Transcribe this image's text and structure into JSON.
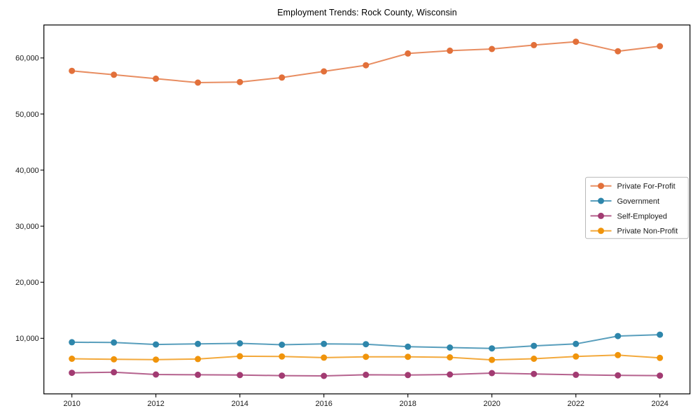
{
  "chart_data": {
    "type": "line",
    "title": "Employment Trends: Rock County, Wisconsin",
    "xlabel": "",
    "ylabel": "",
    "grid": false,
    "background": "#ffffff",
    "axis_color": "#000000",
    "x": [
      2010,
      2011,
      2012,
      2013,
      2014,
      2015,
      2016,
      2017,
      2018,
      2019,
      2020,
      2021,
      2022,
      2023,
      2024
    ],
    "xtick_values": [
      2010,
      2012,
      2014,
      2016,
      2018,
      2020,
      2022,
      2024
    ],
    "xtick_labels": [
      "2010",
      "2012",
      "2014",
      "2016",
      "2018",
      "2020",
      "2022",
      "2024"
    ],
    "ytick_values": [
      10000,
      20000,
      30000,
      40000,
      50000,
      60000
    ],
    "ytick_labels": [
      "10,000",
      "20,000",
      "30,000",
      "40,000",
      "50,000",
      "60,000"
    ],
    "xlim": [
      2009.3,
      2024.7
    ],
    "ylim": [
      0,
      65900
    ],
    "legend": {
      "position": "center-right",
      "border_color": "#b8b8b8",
      "background": "#ffffff"
    },
    "series": [
      {
        "name": "Private For-Profit",
        "color": "#E2703A",
        "values": [
          57700,
          57000,
          56300,
          55600,
          55700,
          56500,
          57600,
          58700,
          60800,
          61300,
          61600,
          62300,
          62900,
          61200,
          62100
        ]
      },
      {
        "name": "Government",
        "color": "#2E86AB",
        "values": [
          9300,
          9250,
          8900,
          9000,
          9100,
          8850,
          9000,
          8950,
          8500,
          8350,
          8200,
          8650,
          9000,
          10400,
          10650
        ]
      },
      {
        "name": "Self-Employed",
        "color": "#A23B72",
        "values": [
          3850,
          3950,
          3550,
          3500,
          3450,
          3350,
          3300,
          3500,
          3450,
          3550,
          3800,
          3650,
          3500,
          3400,
          3350
        ]
      },
      {
        "name": "Private Non-Profit",
        "color": "#F0940B",
        "values": [
          6350,
          6250,
          6200,
          6300,
          6800,
          6750,
          6550,
          6700,
          6700,
          6600,
          6150,
          6350,
          6750,
          7000,
          6500
        ]
      }
    ]
  }
}
